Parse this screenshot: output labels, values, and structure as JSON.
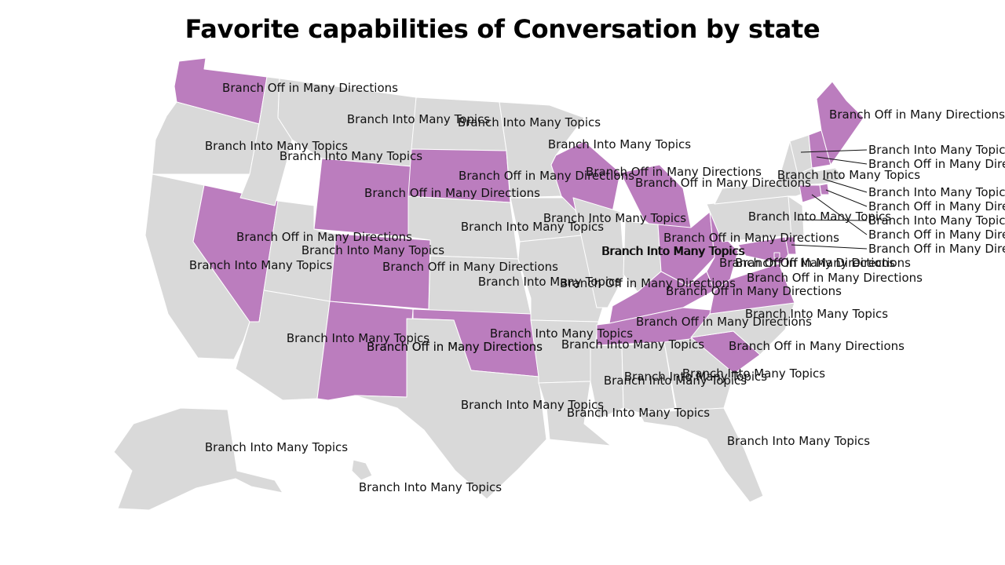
{
  "title": "Favorite capabilities of Conversation by state",
  "colors": {
    "Branch Off in Many Directions": "#bb7dbe",
    "Branch Into Many Topics": "#d9d9d9",
    "label": "#111111",
    "border": "#ffffff"
  },
  "states": [
    {
      "id": "WA",
      "value": "Branch Off in Many Directions"
    },
    {
      "id": "OR",
      "value": "Branch Into Many Topics"
    },
    {
      "id": "CA",
      "value": "Branch Into Many Topics"
    },
    {
      "id": "NV",
      "value": "Branch Off in Many Directions"
    },
    {
      "id": "ID",
      "value": "Branch Into Many Topics"
    },
    {
      "id": "MT",
      "value": "Branch Into Many Topics"
    },
    {
      "id": "WY",
      "value": "Branch Off in Many Directions"
    },
    {
      "id": "UT",
      "value": "Branch Into Many Topics"
    },
    {
      "id": "AZ",
      "value": "Branch Into Many Topics"
    },
    {
      "id": "CO",
      "value": "Branch Off in Many Directions"
    },
    {
      "id": "NM",
      "value": "Branch Off in Many Directions"
    },
    {
      "id": "ND",
      "value": "Branch Into Many Topics"
    },
    {
      "id": "SD",
      "value": "Branch Off in Many Directions"
    },
    {
      "id": "NE",
      "value": "Branch Into Many Topics"
    },
    {
      "id": "KS",
      "value": "Branch Into Many Topics"
    },
    {
      "id": "OK",
      "value": "Branch Off in Many Directions"
    },
    {
      "id": "TX",
      "value": "Branch Into Many Topics"
    },
    {
      "id": "MN",
      "value": "Branch Into Many Topics"
    },
    {
      "id": "IA",
      "value": "Branch Into Many Topics"
    },
    {
      "id": "MO",
      "value": "Branch Into Many Topics"
    },
    {
      "id": "AR",
      "value": "Branch Into Many Topics"
    },
    {
      "id": "LA",
      "value": "Branch Into Many Topics"
    },
    {
      "id": "WI",
      "value": "Branch Off in Many Directions"
    },
    {
      "id": "IL",
      "value": "Branch Into Many Topics"
    },
    {
      "id": "MI",
      "value": "Branch Off in Many Directions"
    },
    {
      "id": "IN",
      "value": "Branch Into Many Topics"
    },
    {
      "id": "OH",
      "value": "Branch Off in Many Directions"
    },
    {
      "id": "KY",
      "value": "Branch Off in Many Directions"
    },
    {
      "id": "TN",
      "value": "Branch Off in Many Directions"
    },
    {
      "id": "MS",
      "value": "Branch Into Many Topics"
    },
    {
      "id": "AL",
      "value": "Branch Into Many Topics"
    },
    {
      "id": "GA",
      "value": "Branch Into Many Topics"
    },
    {
      "id": "FL",
      "value": "Branch Into Many Topics"
    },
    {
      "id": "SC",
      "value": "Branch Off in Many Directions"
    },
    {
      "id": "NC",
      "value": "Branch Into Many Topics"
    },
    {
      "id": "VA",
      "value": "Branch Off in Many Directions"
    },
    {
      "id": "WV",
      "value": "Branch Off in Many Directions"
    },
    {
      "id": "PA",
      "value": "Branch Into Many Topics"
    },
    {
      "id": "NY",
      "value": "Branch Into Many Topics"
    },
    {
      "id": "VT",
      "value": "Branch Into Many Topics"
    },
    {
      "id": "NH",
      "value": "Branch Off in Many Directions"
    },
    {
      "id": "ME",
      "value": "Branch Off in Many Directions"
    },
    {
      "id": "MA",
      "value": "Branch Into Many Topics"
    },
    {
      "id": "RI",
      "value": "Branch Off in Many Directions"
    },
    {
      "id": "CT",
      "value": "Branch Off in Many Directions"
    },
    {
      "id": "NJ",
      "value": "Branch Into Many Topics"
    },
    {
      "id": "DE",
      "value": "Branch Off in Many Directions"
    },
    {
      "id": "MD",
      "value": "Branch Off in Many Directions"
    },
    {
      "id": "DC",
      "value": "Branch Off in Many Directions"
    },
    {
      "id": "AK",
      "value": "Branch Into Many Topics"
    },
    {
      "id": "HI",
      "value": "Branch Into Many Topics"
    }
  ]
}
